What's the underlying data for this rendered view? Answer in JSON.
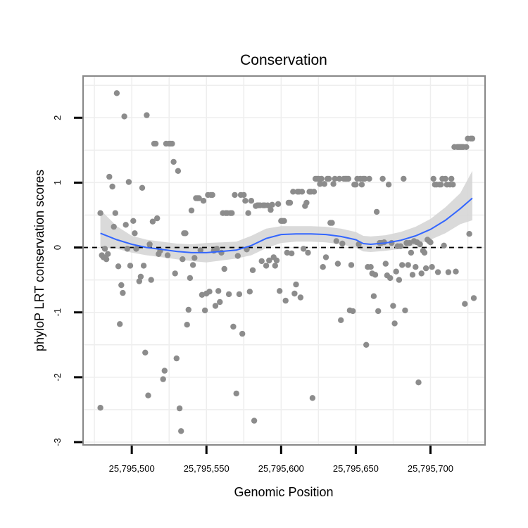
{
  "chart_data": {
    "type": "scatter",
    "title": "Conservation",
    "xlabel": "Genomic Position",
    "ylabel": "phyloP LRT conservation scores",
    "xlim": [
      25795474,
      25795729
    ],
    "ylim": [
      -3,
      2.6
    ],
    "x_ticks": [
      {
        "value": 25795500,
        "label": "25,795,500"
      },
      {
        "value": 25795550,
        "label": "25,795,550"
      },
      {
        "value": 25795600,
        "label": "25,795,600"
      },
      {
        "value": 25795650,
        "label": "25,795,650"
      },
      {
        "value": 25795700,
        "label": "25,795,700"
      }
    ],
    "y_ticks": [
      {
        "value": 2,
        "label": "2"
      },
      {
        "value": 1,
        "label": "1"
      },
      {
        "value": 0,
        "label": "0"
      },
      {
        "value": -1,
        "label": "-1"
      },
      {
        "value": -2,
        "label": "-2"
      },
      {
        "value": -3,
        "label": "-3"
      }
    ],
    "reference_line": {
      "y": 0,
      "style": "dashed"
    },
    "colors": {
      "points": "#8c8c8c",
      "smooth_line": "#3366ff",
      "ribbon": "#d4d4d4",
      "panel_border": "#888888",
      "grid": "#eeeeee",
      "reference": "#000000"
    },
    "points": [
      {
        "x": 25795479,
        "y": 0.53
      },
      {
        "x": 25795479,
        "y": -2.47
      },
      {
        "x": 25795480,
        "y": -0.12
      },
      {
        "x": 25795481,
        "y": -0.15
      },
      {
        "x": 25795482,
        "y": -0.02
      },
      {
        "x": 25795483,
        "y": -0.18
      },
      {
        "x": 25795484,
        "y": -0.1
      },
      {
        "x": 25795485,
        "y": 1.09
      },
      {
        "x": 25795487,
        "y": 0.94
      },
      {
        "x": 25795488,
        "y": 0.32
      },
      {
        "x": 25795489,
        "y": 0.53
      },
      {
        "x": 25795490,
        "y": 2.38
      },
      {
        "x": 25795491,
        "y": -0.29
      },
      {
        "x": 25795492,
        "y": -1.18
      },
      {
        "x": 25795493,
        "y": -0.58
      },
      {
        "x": 25795494,
        "y": -0.7
      },
      {
        "x": 25795495,
        "y": 2.02
      },
      {
        "x": 25795496,
        "y": 0.35
      },
      {
        "x": 25795497,
        "y": -0.02
      },
      {
        "x": 25795498,
        "y": 1.01
      },
      {
        "x": 25795499,
        "y": -0.28
      },
      {
        "x": 25795501,
        "y": 0.41
      },
      {
        "x": 25795502,
        "y": 0.22
      },
      {
        "x": 25795503,
        "y": -0.02
      },
      {
        "x": 25795505,
        "y": -0.52
      },
      {
        "x": 25795506,
        "y": -0.45
      },
      {
        "x": 25795507,
        "y": 0.92
      },
      {
        "x": 25795508,
        "y": -0.28
      },
      {
        "x": 25795509,
        "y": -1.62
      },
      {
        "x": 25795510,
        "y": 2.04
      },
      {
        "x": 25795511,
        "y": -2.28
      },
      {
        "x": 25795512,
        "y": 0.05
      },
      {
        "x": 25795513,
        "y": -0.5
      },
      {
        "x": 25795514,
        "y": 0.4
      },
      {
        "x": 25795515,
        "y": 1.6
      },
      {
        "x": 25795516,
        "y": 1.6
      },
      {
        "x": 25795517,
        "y": 0.45
      },
      {
        "x": 25795518,
        "y": -0.1
      },
      {
        "x": 25795519,
        "y": -0.05
      },
      {
        "x": 25795521,
        "y": -2.03
      },
      {
        "x": 25795522,
        "y": -1.9
      },
      {
        "x": 25795523,
        "y": 1.6
      },
      {
        "x": 25795524,
        "y": -0.12
      },
      {
        "x": 25795525,
        "y": 1.6
      },
      {
        "x": 25795526,
        "y": 1.6
      },
      {
        "x": 25795527,
        "y": 1.6
      },
      {
        "x": 25795528,
        "y": 1.32
      },
      {
        "x": 25795529,
        "y": -0.4
      },
      {
        "x": 25795530,
        "y": -1.71
      },
      {
        "x": 25795531,
        "y": 1.18
      },
      {
        "x": 25795532,
        "y": -2.48
      },
      {
        "x": 25795533,
        "y": -2.83
      },
      {
        "x": 25795534,
        "y": -0.18
      },
      {
        "x": 25795535,
        "y": 0.22
      },
      {
        "x": 25795536,
        "y": 0.22
      },
      {
        "x": 25795537,
        "y": -1.19
      },
      {
        "x": 25795538,
        "y": -0.96
      },
      {
        "x": 25795539,
        "y": -0.47
      },
      {
        "x": 25795540,
        "y": 0.57
      },
      {
        "x": 25795541,
        "y": -0.27
      },
      {
        "x": 25795542,
        "y": -0.16
      },
      {
        "x": 25795543,
        "y": 0.76
      },
      {
        "x": 25795544,
        "y": 0.76
      },
      {
        "x": 25795545,
        "y": 0.76
      },
      {
        "x": 25795546,
        "y": -0.04
      },
      {
        "x": 25795547,
        "y": -0.73
      },
      {
        "x": 25795548,
        "y": 0.72
      },
      {
        "x": 25795549,
        "y": -0.97
      },
      {
        "x": 25795550,
        "y": -0.71
      },
      {
        "x": 25795551,
        "y": 0.81
      },
      {
        "x": 25795552,
        "y": -0.68
      },
      {
        "x": 25795553,
        "y": 0.81
      },
      {
        "x": 25795554,
        "y": 0.81
      },
      {
        "x": 25795555,
        "y": -0.05
      },
      {
        "x": 25795556,
        "y": -0.9
      },
      {
        "x": 25795557,
        "y": -0.02
      },
      {
        "x": 25795558,
        "y": -0.67
      },
      {
        "x": 25795559,
        "y": -0.84
      },
      {
        "x": 25795560,
        "y": -0.08
      },
      {
        "x": 25795561,
        "y": 0.53
      },
      {
        "x": 25795562,
        "y": -0.33
      },
      {
        "x": 25795563,
        "y": 0.53
      },
      {
        "x": 25795564,
        "y": 0.53
      },
      {
        "x": 25795565,
        "y": -0.72
      },
      {
        "x": 25795566,
        "y": 0.53
      },
      {
        "x": 25795567,
        "y": 0.53
      },
      {
        "x": 25795568,
        "y": -1.22
      },
      {
        "x": 25795569,
        "y": 0.81
      },
      {
        "x": 25795570,
        "y": -2.25
      },
      {
        "x": 25795571,
        "y": -0.13
      },
      {
        "x": 25795572,
        "y": -0.72
      },
      {
        "x": 25795573,
        "y": 0.81
      },
      {
        "x": 25795574,
        "y": -1.33
      },
      {
        "x": 25795575,
        "y": 0.81
      },
      {
        "x": 25795576,
        "y": 0.72
      },
      {
        "x": 25795577,
        "y": -0.03
      },
      {
        "x": 25795578,
        "y": 0.53
      },
      {
        "x": 25795579,
        "y": -0.68
      },
      {
        "x": 25795580,
        "y": 0.72
      },
      {
        "x": 25795581,
        "y": -0.35
      },
      {
        "x": 25795582,
        "y": -2.67
      },
      {
        "x": 25795583,
        "y": 0.64
      },
      {
        "x": 25795584,
        "y": 0.65
      },
      {
        "x": 25795585,
        "y": 0.65
      },
      {
        "x": 25795586,
        "y": 0.65
      },
      {
        "x": 25795587,
        "y": -0.21
      },
      {
        "x": 25795588,
        "y": 0.65
      },
      {
        "x": 25795589,
        "y": 0.65
      },
      {
        "x": 25795590,
        "y": -0.28
      },
      {
        "x": 25795591,
        "y": 0.65
      },
      {
        "x": 25795592,
        "y": -0.2
      },
      {
        "x": 25795593,
        "y": 0.58
      },
      {
        "x": 25795594,
        "y": 0.66
      },
      {
        "x": 25795595,
        "y": -0.15
      },
      {
        "x": 25795596,
        "y": -0.28
      },
      {
        "x": 25795597,
        "y": -0.2
      },
      {
        "x": 25795598,
        "y": 0.67
      },
      {
        "x": 25795599,
        "y": -0.67
      },
      {
        "x": 25795600,
        "y": 0.41
      },
      {
        "x": 25795601,
        "y": 0.41
      },
      {
        "x": 25795602,
        "y": 0.41
      },
      {
        "x": 25795603,
        "y": -0.82
      },
      {
        "x": 25795604,
        "y": -0.08
      },
      {
        "x": 25795605,
        "y": 0.69
      },
      {
        "x": 25795606,
        "y": 0.69
      },
      {
        "x": 25795607,
        "y": -0.09
      },
      {
        "x": 25795608,
        "y": 0.86
      },
      {
        "x": 25795609,
        "y": -0.71
      },
      {
        "x": 25795610,
        "y": -0.57
      },
      {
        "x": 25795611,
        "y": 0.86
      },
      {
        "x": 25795612,
        "y": 0.86
      },
      {
        "x": 25795613,
        "y": -0.77
      },
      {
        "x": 25795614,
        "y": 0.86
      },
      {
        "x": 25795615,
        "y": -0.02
      },
      {
        "x": 25795616,
        "y": 0.64
      },
      {
        "x": 25795617,
        "y": 0.69
      },
      {
        "x": 25795618,
        "y": -0.08
      },
      {
        "x": 25795619,
        "y": 0.86
      },
      {
        "x": 25795620,
        "y": 0.86
      },
      {
        "x": 25795621,
        "y": -2.32
      },
      {
        "x": 25795622,
        "y": 0.86
      },
      {
        "x": 25795623,
        "y": 1.06
      },
      {
        "x": 25795624,
        "y": 1.06
      },
      {
        "x": 25795625,
        "y": 1.06
      },
      {
        "x": 25795626,
        "y": 0.98
      },
      {
        "x": 25795627,
        "y": 1.06
      },
      {
        "x": 25795628,
        "y": -0.3
      },
      {
        "x": 25795629,
        "y": 0.98
      },
      {
        "x": 25795630,
        "y": -0.15
      },
      {
        "x": 25795631,
        "y": 1.06
      },
      {
        "x": 25795632,
        "y": 1.06
      },
      {
        "x": 25795633,
        "y": 0.38
      },
      {
        "x": 25795634,
        "y": 0.38
      },
      {
        "x": 25795635,
        "y": 0.98
      },
      {
        "x": 25795636,
        "y": 1.06
      },
      {
        "x": 25795637,
        "y": 0.1
      },
      {
        "x": 25795638,
        "y": -0.25
      },
      {
        "x": 25795639,
        "y": 1.06
      },
      {
        "x": 25795640,
        "y": -1.12
      },
      {
        "x": 25795641,
        "y": 0.06
      },
      {
        "x": 25795642,
        "y": 1.06
      },
      {
        "x": 25795643,
        "y": 1.06
      },
      {
        "x": 25795644,
        "y": 1.06
      },
      {
        "x": 25795645,
        "y": 1.06
      },
      {
        "x": 25795646,
        "y": -0.97
      },
      {
        "x": 25795647,
        "y": -0.27
      },
      {
        "x": 25795648,
        "y": -0.98
      },
      {
        "x": 25795649,
        "y": 0.97
      },
      {
        "x": 25795650,
        "y": 0.97
      },
      {
        "x": 25795651,
        "y": 1.06
      },
      {
        "x": 25795652,
        "y": 0.05
      },
      {
        "x": 25795653,
        "y": 1.06
      },
      {
        "x": 25795654,
        "y": 0.97
      },
      {
        "x": 25795655,
        "y": 1.06
      },
      {
        "x": 25795656,
        "y": 1.06
      },
      {
        "x": 25795657,
        "y": -1.5
      },
      {
        "x": 25795658,
        "y": -0.3
      },
      {
        "x": 25795659,
        "y": 1.06
      },
      {
        "x": 25795660,
        "y": -0.3
      },
      {
        "x": 25795661,
        "y": -0.4
      },
      {
        "x": 25795662,
        "y": -0.75
      },
      {
        "x": 25795663,
        "y": -0.42
      },
      {
        "x": 25795664,
        "y": 0.55
      },
      {
        "x": 25795665,
        "y": -0.98
      },
      {
        "x": 25795666,
        "y": 0.07
      },
      {
        "x": 25795667,
        "y": 0.07
      },
      {
        "x": 25795668,
        "y": 1.06
      },
      {
        "x": 25795669,
        "y": 0.08
      },
      {
        "x": 25795670,
        "y": -0.25
      },
      {
        "x": 25795671,
        "y": -0.43
      },
      {
        "x": 25795672,
        "y": 0.97
      },
      {
        "x": 25795673,
        "y": -0.47
      },
      {
        "x": 25795674,
        "y": 0.07
      },
      {
        "x": 25795675,
        "y": -0.9
      },
      {
        "x": 25795676,
        "y": -1.17
      },
      {
        "x": 25795677,
        "y": -0.37
      },
      {
        "x": 25795678,
        "y": 0.02
      },
      {
        "x": 25795679,
        "y": -0.5
      },
      {
        "x": 25795680,
        "y": 0.02
      },
      {
        "x": 25795681,
        "y": -0.27
      },
      {
        "x": 25795682,
        "y": 1.06
      },
      {
        "x": 25795683,
        "y": -0.97
      },
      {
        "x": 25795684,
        "y": 0.07
      },
      {
        "x": 25795685,
        "y": -0.27
      },
      {
        "x": 25795686,
        "y": 0.07
      },
      {
        "x": 25795687,
        "y": -0.08
      },
      {
        "x": 25795688,
        "y": -0.42
      },
      {
        "x": 25795689,
        "y": 0.1
      },
      {
        "x": 25795690,
        "y": -0.3
      },
      {
        "x": 25795691,
        "y": 0.08
      },
      {
        "x": 25795692,
        "y": -2.08
      },
      {
        "x": 25795693,
        "y": 0.05
      },
      {
        "x": 25795694,
        "y": -0.4
      },
      {
        "x": 25795695,
        "y": -0.05
      },
      {
        "x": 25795696,
        "y": -0.08
      },
      {
        "x": 25795697,
        "y": -0.32
      },
      {
        "x": 25795698,
        "y": 0.12
      },
      {
        "x": 25795699,
        "y": 0.1
      },
      {
        "x": 25795700,
        "y": 0.08
      },
      {
        "x": 25795701,
        "y": -0.3
      },
      {
        "x": 25795702,
        "y": 1.06
      },
      {
        "x": 25795703,
        "y": 0.97
      },
      {
        "x": 25795704,
        "y": 0.97
      },
      {
        "x": 25795705,
        "y": -0.38
      },
      {
        "x": 25795706,
        "y": 0.97
      },
      {
        "x": 25795707,
        "y": 0.97
      },
      {
        "x": 25795708,
        "y": 1.06
      },
      {
        "x": 25795709,
        "y": 0.03
      },
      {
        "x": 25795710,
        "y": 1.06
      },
      {
        "x": 25795711,
        "y": 0.97
      },
      {
        "x": 25795712,
        "y": -0.38
      },
      {
        "x": 25795713,
        "y": 0.97
      },
      {
        "x": 25795714,
        "y": 1.06
      },
      {
        "x": 25795715,
        "y": 0.97
      },
      {
        "x": 25795716,
        "y": 1.55
      },
      {
        "x": 25795717,
        "y": -0.37
      },
      {
        "x": 25795718,
        "y": 1.55
      },
      {
        "x": 25795719,
        "y": 1.55
      },
      {
        "x": 25795720,
        "y": 1.55
      },
      {
        "x": 25795721,
        "y": 1.55
      },
      {
        "x": 25795722,
        "y": 1.55
      },
      {
        "x": 25795723,
        "y": -0.87
      },
      {
        "x": 25795724,
        "y": 1.55
      },
      {
        "x": 25795725,
        "y": 1.68
      },
      {
        "x": 25795726,
        "y": 0.21
      },
      {
        "x": 25795727,
        "y": 1.68
      },
      {
        "x": 25795728,
        "y": 1.68
      },
      {
        "x": 25795729,
        "y": -0.78
      }
    ],
    "smooth": {
      "x": [
        25795479,
        25795490,
        25795500,
        25795510,
        25795520,
        25795530,
        25795540,
        25795550,
        25795560,
        25795570,
        25795580,
        25795590,
        25795600,
        25795610,
        25795620,
        25795630,
        25795640,
        25795650,
        25795655,
        25795660,
        25795670,
        25795680,
        25795690,
        25795700,
        25795710,
        25795720,
        25795728
      ],
      "y": [
        0.22,
        0.12,
        0.05,
        0.0,
        -0.03,
        -0.06,
        -0.08,
        -0.08,
        -0.06,
        -0.04,
        0.03,
        0.14,
        0.2,
        0.21,
        0.21,
        0.2,
        0.17,
        0.12,
        0.06,
        0.05,
        0.07,
        0.11,
        0.18,
        0.28,
        0.42,
        0.6,
        0.76
      ],
      "lower": [
        0.0,
        -0.02,
        -0.08,
        -0.12,
        -0.15,
        -0.18,
        -0.21,
        -0.23,
        -0.2,
        -0.17,
        -0.12,
        -0.01,
        0.07,
        0.09,
        0.09,
        0.08,
        0.05,
        0.0,
        -0.06,
        -0.07,
        -0.05,
        -0.02,
        0.04,
        0.12,
        0.22,
        0.36,
        0.42
      ],
      "upper": [
        0.58,
        0.33,
        0.18,
        0.12,
        0.09,
        0.06,
        0.05,
        0.07,
        0.08,
        0.09,
        0.18,
        0.29,
        0.33,
        0.33,
        0.33,
        0.32,
        0.29,
        0.24,
        0.18,
        0.17,
        0.19,
        0.24,
        0.32,
        0.44,
        0.62,
        0.84,
        1.18
      ]
    }
  }
}
